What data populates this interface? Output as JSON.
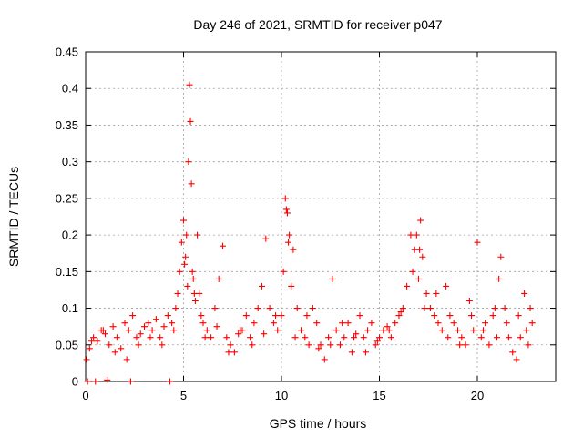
{
  "chart_data": {
    "type": "scatter",
    "title": "Day 246 of 2021, SRMTID for receiver p047",
    "xlabel": "GPS time / hours",
    "ylabel": "SRMTID / TECUs",
    "xlim": [
      0,
      24
    ],
    "ylim": [
      0,
      0.45
    ],
    "xticks": [
      0,
      5,
      10,
      15,
      20
    ],
    "xtick_labels": [
      "0",
      "5",
      "10",
      "15",
      "20"
    ],
    "yticks": [
      0,
      0.05,
      0.1,
      0.15,
      0.2,
      0.25,
      0.3,
      0.35,
      0.4,
      0.45
    ],
    "ytick_labels": [
      "0",
      "0.05",
      "0.1",
      "0.15",
      "0.2",
      "0.25",
      "0.3",
      "0.35",
      "0.4",
      "0.45"
    ],
    "grid": true,
    "marker": "+",
    "color": "#ff0000",
    "series": [
      {
        "name": "SRMTID",
        "x": [
          0.05,
          0.2,
          0.4,
          0.6,
          0.8,
          1.0,
          1.2,
          1.4,
          1.6,
          1.8,
          2.0,
          2.2,
          2.4,
          2.6,
          2.8,
          3.0,
          3.2,
          3.4,
          3.6,
          3.8,
          4.0,
          4.2,
          4.4,
          4.6,
          4.7,
          4.8,
          4.9,
          5.0,
          5.05,
          5.1,
          5.15,
          5.2,
          5.25,
          5.3,
          5.35,
          5.4,
          5.5,
          5.6,
          5.7,
          5.8,
          5.9,
          6.0,
          6.2,
          6.4,
          6.6,
          6.8,
          7.0,
          7.2,
          7.4,
          7.6,
          7.8,
          8.0,
          8.2,
          8.4,
          8.6,
          8.8,
          9.0,
          9.2,
          9.4,
          9.6,
          9.8,
          10.0,
          10.1,
          10.2,
          10.3,
          10.4,
          10.5,
          10.6,
          10.8,
          11.0,
          11.2,
          11.4,
          11.6,
          11.8,
          12.0,
          12.2,
          12.4,
          12.6,
          12.8,
          13.0,
          13.2,
          13.4,
          13.6,
          13.8,
          14.0,
          14.2,
          14.4,
          14.6,
          14.8,
          15.0,
          15.2,
          15.4,
          15.6,
          15.8,
          16.0,
          16.2,
          16.4,
          16.6,
          16.8,
          17.0,
          17.1,
          17.2,
          17.4,
          17.6,
          17.8,
          18.0,
          18.2,
          18.4,
          18.6,
          18.8,
          19.0,
          19.2,
          19.4,
          19.6,
          19.8,
          20.0,
          20.2,
          20.4,
          20.6,
          20.8,
          21.0,
          21.2,
          21.4,
          21.6,
          21.8,
          22.0,
          22.2,
          22.4,
          22.6,
          22.8,
          0.1,
          0.5,
          1.1,
          2.3,
          4.3,
          0.3,
          0.9,
          1.5,
          2.1,
          2.7,
          3.3,
          3.9,
          4.5,
          5.45,
          5.55,
          6.1,
          6.7,
          7.3,
          7.9,
          8.5,
          9.1,
          9.7,
          10.25,
          10.35,
          10.7,
          11.3,
          11.9,
          12.5,
          13.1,
          13.7,
          14.3,
          14.9,
          15.5,
          16.1,
          16.7,
          16.9,
          17.05,
          17.3,
          17.9,
          18.5,
          19.1,
          19.7,
          20.3,
          20.9,
          21.1,
          21.5,
          22.1,
          22.5,
          22.7
        ],
        "y": [
          0.03,
          0.045,
          0.06,
          0.055,
          0.07,
          0.065,
          0.05,
          0.075,
          0.06,
          0.045,
          0.08,
          0.07,
          0.09,
          0.06,
          0.065,
          0.075,
          0.08,
          0.07,
          0.085,
          0.06,
          0.075,
          0.09,
          0.08,
          0.1,
          0.12,
          0.15,
          0.19,
          0.22,
          0.16,
          0.17,
          0.2,
          0.13,
          0.3,
          0.405,
          0.355,
          0.27,
          0.14,
          0.11,
          0.2,
          0.12,
          0.09,
          0.08,
          0.07,
          0.06,
          0.1,
          0.14,
          0.185,
          0.06,
          0.05,
          0.04,
          0.065,
          0.07,
          0.09,
          0.06,
          0.08,
          0.1,
          0.13,
          0.195,
          0.1,
          0.08,
          0.07,
          0.09,
          0.15,
          0.25,
          0.23,
          0.2,
          0.13,
          0.18,
          0.1,
          0.07,
          0.06,
          0.05,
          0.1,
          0.08,
          0.05,
          0.03,
          0.06,
          0.14,
          0.07,
          0.05,
          0.06,
          0.08,
          0.04,
          0.065,
          0.09,
          0.06,
          0.07,
          0.08,
          0.05,
          0.06,
          0.07,
          0.075,
          0.06,
          0.08,
          0.09,
          0.1,
          0.13,
          0.2,
          0.18,
          0.14,
          0.22,
          0.17,
          0.12,
          0.1,
          0.09,
          0.08,
          0.07,
          0.13,
          0.09,
          0.08,
          0.07,
          0.06,
          0.05,
          0.11,
          0.07,
          0.19,
          0.06,
          0.08,
          0.05,
          0.09,
          0.06,
          0.17,
          0.1,
          0.06,
          0.04,
          0.03,
          0.06,
          0.12,
          0.05,
          0.08,
          0.0,
          0.0,
          0.002,
          0.0,
          0.0,
          0.055,
          0.07,
          0.04,
          0.03,
          0.05,
          0.06,
          0.05,
          0.07,
          0.15,
          0.12,
          0.06,
          0.075,
          0.04,
          0.07,
          0.05,
          0.065,
          0.09,
          0.235,
          0.19,
          0.06,
          0.09,
          0.045,
          0.05,
          0.08,
          0.06,
          0.04,
          0.055,
          0.07,
          0.095,
          0.15,
          0.2,
          0.18,
          0.1,
          0.12,
          0.06,
          0.05,
          0.09,
          0.07,
          0.1,
          0.14,
          0.08,
          0.09,
          0.07,
          0.1
        ]
      }
    ]
  }
}
